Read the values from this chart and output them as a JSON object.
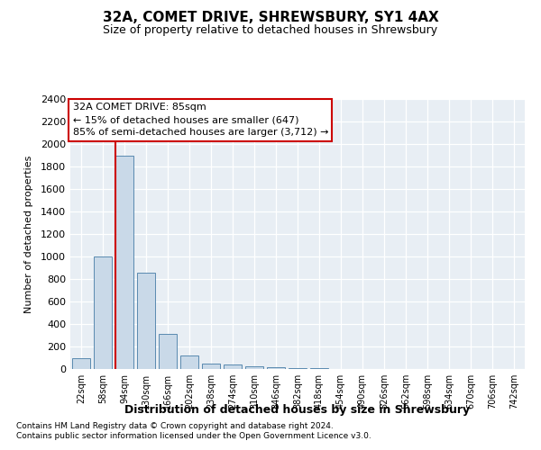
{
  "title": "32A, COMET DRIVE, SHREWSBURY, SY1 4AX",
  "subtitle": "Size of property relative to detached houses in Shrewsbury",
  "xlabel": "Distribution of detached houses by size in Shrewsbury",
  "ylabel": "Number of detached properties",
  "bar_color": "#c9d9e8",
  "bar_edge_color": "#5a8ab0",
  "background_color": "#e8eef4",
  "grid_color": "#ffffff",
  "fig_background": "#ffffff",
  "categories": [
    "22sqm",
    "58sqm",
    "94sqm",
    "130sqm",
    "166sqm",
    "202sqm",
    "238sqm",
    "274sqm",
    "310sqm",
    "346sqm",
    "382sqm",
    "418sqm",
    "454sqm",
    "490sqm",
    "526sqm",
    "562sqm",
    "598sqm",
    "634sqm",
    "670sqm",
    "706sqm",
    "742sqm"
  ],
  "values": [
    100,
    1000,
    1900,
    860,
    310,
    120,
    50,
    40,
    25,
    15,
    10,
    10,
    3,
    2,
    2,
    1,
    1,
    1,
    1,
    1,
    1
  ],
  "ylim": [
    0,
    2400
  ],
  "yticks": [
    0,
    200,
    400,
    600,
    800,
    1000,
    1200,
    1400,
    1600,
    1800,
    2000,
    2200,
    2400
  ],
  "vline_index": 2,
  "vline_color": "#cc0000",
  "annotation_text": "32A COMET DRIVE: 85sqm\n← 15% of detached houses are smaller (647)\n85% of semi-detached houses are larger (3,712) →",
  "annotation_box_color": "#ffffff",
  "annotation_box_edge": "#cc0000",
  "footer1": "Contains HM Land Registry data © Crown copyright and database right 2024.",
  "footer2": "Contains public sector information licensed under the Open Government Licence v3.0."
}
